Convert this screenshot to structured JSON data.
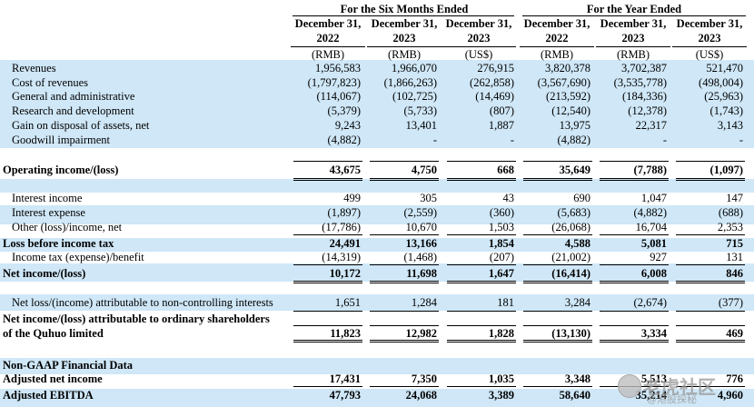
{
  "header": {
    "group_six_months": "For the Six Months Ended",
    "group_year": "For the Year Ended",
    "columns": [
      {
        "date": "December 31,",
        "year": "2022",
        "unit": "(RMB)"
      },
      {
        "date": "December 31,",
        "year": "2023",
        "unit": "(RMB)"
      },
      {
        "date": "December 31,",
        "year": "2023",
        "unit": "(US$)"
      },
      {
        "date": "December 31,",
        "year": "2022",
        "unit": "(RMB)"
      },
      {
        "date": "December 31,",
        "year": "2023",
        "unit": "(RMB)"
      },
      {
        "date": "December 31,",
        "year": "2023",
        "unit": "(US$)"
      }
    ]
  },
  "rows": [
    {
      "label": "Revenues",
      "values": [
        "1,956,583",
        "1,966,070",
        "276,915",
        "3,820,378",
        "3,702,387",
        "521,470"
      ]
    },
    {
      "label": "Cost of revenues",
      "values": [
        "(1,797,823)",
        "(1,866,263)",
        "(262,858)",
        "(3,567,690)",
        "(3,535,778)",
        "(498,004)"
      ]
    },
    {
      "label": "General and administrative",
      "values": [
        "(114,067)",
        "(102,725)",
        "(14,469)",
        "(213,592)",
        "(184,336)",
        "(25,963)"
      ]
    },
    {
      "label": "Research and development",
      "values": [
        "(5,379)",
        "(5,733)",
        "(807)",
        "(12,540)",
        "(12,378)",
        "(1,743)"
      ]
    },
    {
      "label": "Gain on disposal of assets, net",
      "values": [
        "9,243",
        "13,401",
        "1,887",
        "13,975",
        "22,317",
        "3,143"
      ]
    },
    {
      "label": "Goodwill impairment",
      "values": [
        "(4,882)",
        "-",
        "-",
        "(4,882)",
        "-",
        "-"
      ]
    },
    {
      "label": "Operating income/(loss)",
      "values": [
        "43,675",
        "4,750",
        "668",
        "35,649",
        "(7,788)",
        "(1,097)"
      ]
    },
    {
      "label": "Interest income",
      "values": [
        "499",
        "305",
        "43",
        "690",
        "1,047",
        "147"
      ]
    },
    {
      "label": "Interest expense",
      "values": [
        "(1,897)",
        "(2,559)",
        "(360)",
        "(5,683)",
        "(4,882)",
        "(688)"
      ]
    },
    {
      "label": "Other (loss)/income, net",
      "values": [
        "(17,786)",
        "10,670",
        "1,503",
        "(26,068)",
        "16,704",
        "2,353"
      ]
    },
    {
      "label": "Loss before income tax",
      "values": [
        "24,491",
        "13,166",
        "1,854",
        "4,588",
        "5,081",
        "715"
      ]
    },
    {
      "label": "Income tax (expense)/benefit",
      "values": [
        "(14,319)",
        "(1,468)",
        "(207)",
        "(21,002)",
        "927",
        "131"
      ]
    },
    {
      "label": "Net income/(loss)",
      "values": [
        "10,172",
        "11,698",
        "1,647",
        "(16,414)",
        "6,008",
        "846"
      ]
    },
    {
      "label": "Net loss/(income) attributable to non-controlling interests",
      "values": [
        "1,651",
        "1,284",
        "181",
        "3,284",
        "(2,674)",
        "(377)"
      ]
    },
    {
      "label": "Net income/(loss) attributable to ordinary shareholders",
      "label2": "of the Quhuo limited",
      "values": [
        "11,823",
        "12,982",
        "1,828",
        "(13,130)",
        "3,334",
        "469"
      ]
    },
    {
      "label": "Non-GAAP Financial Data",
      "values": []
    },
    {
      "label": "Adjusted net income",
      "values": [
        "17,431",
        "7,350",
        "1,035",
        "3,348",
        "5,513",
        "776"
      ]
    },
    {
      "label": "Adjusted EBITDA",
      "values": [
        "47,793",
        "24,068",
        "3,389",
        "58,640",
        "35,214",
        "4,960"
      ]
    }
  ],
  "watermark": {
    "text": "老虎社区",
    "subtext": "@港股探秘"
  },
  "colors": {
    "band": "#cfe7f7",
    "text": "#000000"
  }
}
